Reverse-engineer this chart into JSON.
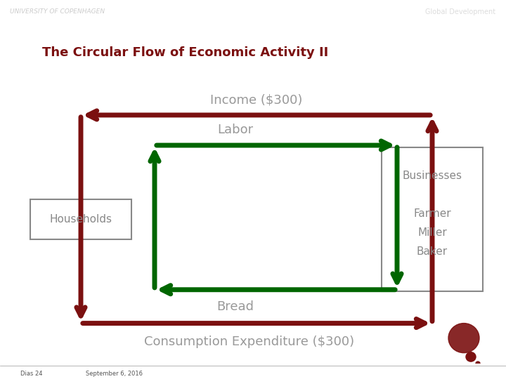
{
  "title": "The Circular Flow of Economic Activity II",
  "title_color": "#7B1010",
  "title_fontsize": 13,
  "bg_color": "#FFFFFF",
  "content_bg": "#FFFFFF",
  "header_bg": "#666666",
  "header_text": "Global Development",
  "header_text_color": "#DDDDDD",
  "univ_text": "UNIVERSITY OF COPENHAGEN",
  "univ_text_color": "#CCCCCC",
  "dark_red": "#7B1010",
  "dark_green": "#006600",
  "box_edge_color": "#888888",
  "box_text_color": "#888888",
  "households_label": "Households",
  "businesses_label": "Businesses",
  "businesses_sublabel": "Farmer\nMiller\nBaker",
  "income_label": "Income ($300)",
  "labor_label": "Labor",
  "bread_label": "Bread",
  "consumption_label": "Consumption Expenditure ($300)",
  "footer_left": "Dias 24",
  "footer_right": "September 6, 2016",
  "footer_color": "#555555",
  "logo_color": "#7B1010",
  "lw_outer": 5,
  "lw_inner": 5,
  "arrow_ms": 22
}
